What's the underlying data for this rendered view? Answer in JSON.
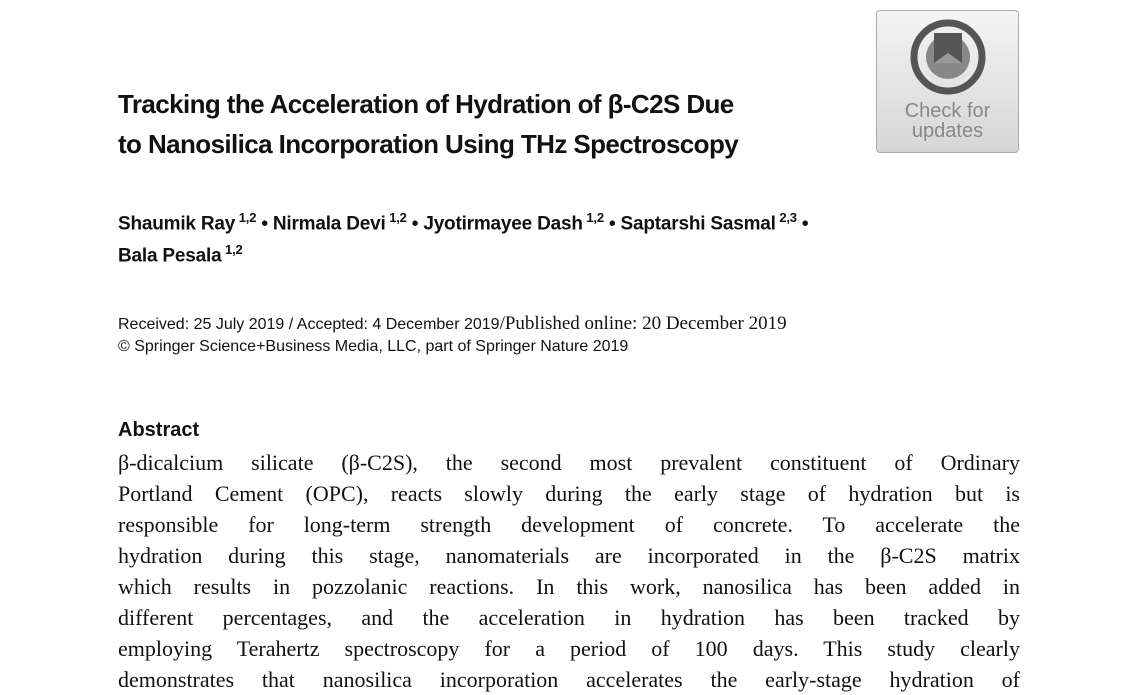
{
  "badge": {
    "line1": "Check for",
    "line2": "updates"
  },
  "title": {
    "lines": [
      "Tracking the Acceleration of Hydration of β-C2S Due",
      "to Nanosilica Incorporation Using THz Spectroscopy"
    ]
  },
  "authors": {
    "separator": "•",
    "line1": [
      {
        "name": "Shaumik Ray",
        "aff": "1,2"
      },
      {
        "name": "Nirmala Devi",
        "aff": "1,2"
      },
      {
        "name": "Jyotirmayee Dash",
        "aff": "1,2"
      },
      {
        "name": "Saptarshi Sasmal",
        "aff": "2,3"
      }
    ],
    "line2": [
      {
        "name": "Bala Pesala",
        "aff": "1,2"
      }
    ]
  },
  "history": {
    "received": "Received: 25 July 2019 / Accepted: 4 December 2019",
    "published": "/Published online: 20 December 2019"
  },
  "copyright": "© Springer Science+Business Media, LLC, part of Springer Nature 2019",
  "abstract": {
    "heading": "Abstract",
    "lines": [
      "β-dicalcium silicate (β-C2S), the second most prevalent constituent of Ordinary",
      "Portland Cement (OPC), reacts slowly during the early stage of hydration but is",
      "responsible for long-term strength development of concrete. To accelerate the",
      "hydration during this stage, nanomaterials are incorporated in the β-C2S matrix",
      "which results in pozzolanic reactions. In this work, nanosilica has been added in",
      "different percentages, and the acceleration in hydration has been tracked by",
      "employing Terahertz spectroscopy for a period of 100 days. This study clearly",
      "demonstrates that nanosilica incorporation accelerates the early-stage hydration of"
    ]
  }
}
